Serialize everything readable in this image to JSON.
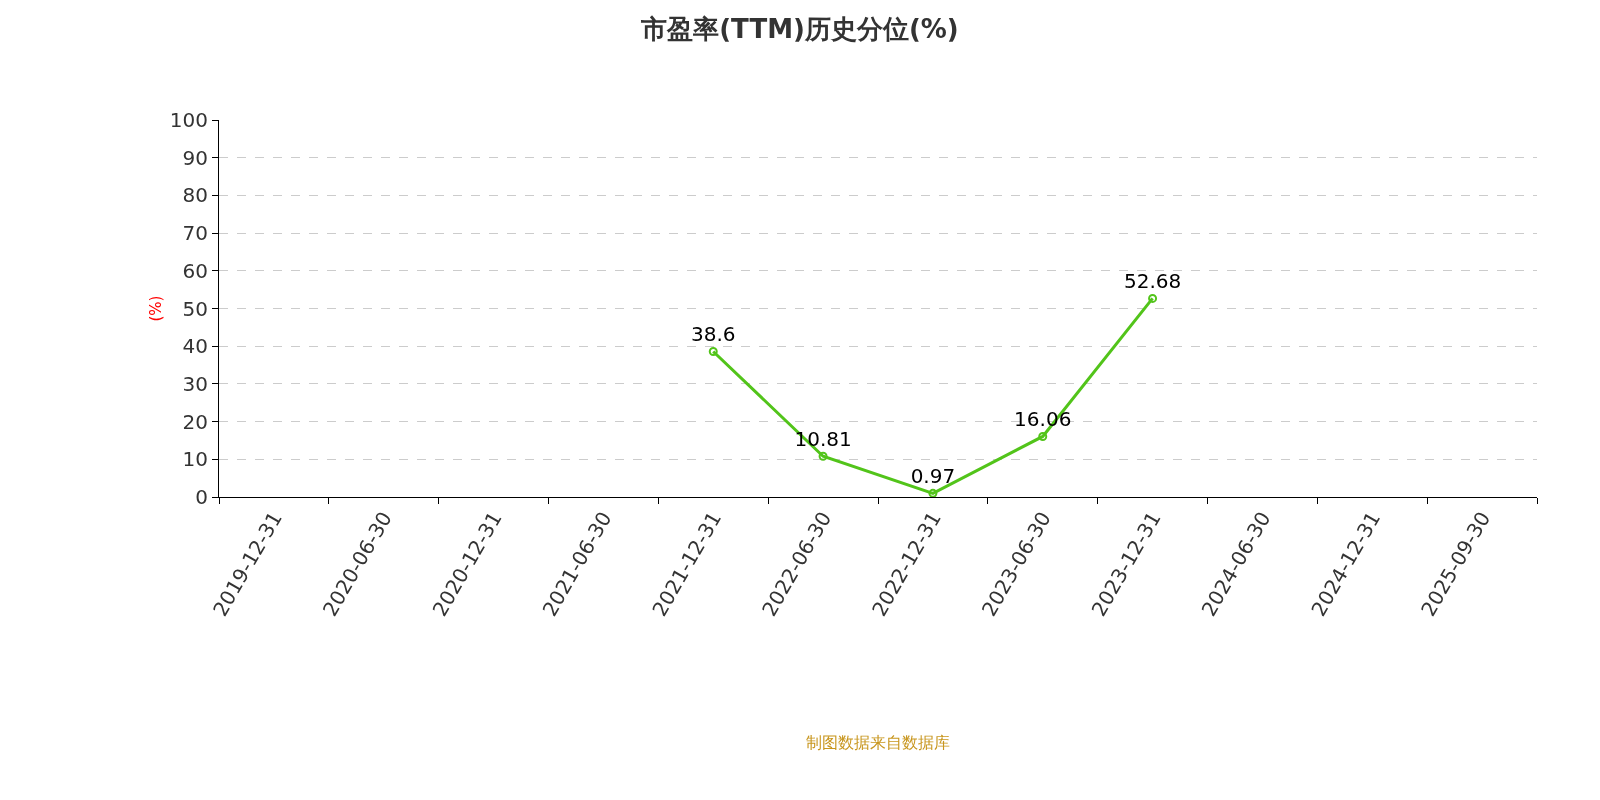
{
  "chart_data": {
    "type": "line",
    "title": "市盈率(TTM)历史分位(%)",
    "ylabel": "(%)",
    "categories": [
      "2019-12-31",
      "2020-06-30",
      "2020-12-31",
      "2021-06-30",
      "2021-12-31",
      "2022-06-30",
      "2022-12-31",
      "2023-06-30",
      "2023-12-31",
      "2024-06-30",
      "2024-12-31",
      "2025-09-30"
    ],
    "series": [
      {
        "color": "#52c41a",
        "values": [
          null,
          null,
          null,
          null,
          38.6,
          10.81,
          0.97,
          16.06,
          52.68,
          null,
          null,
          null
        ]
      }
    ],
    "ylim": [
      0,
      100
    ],
    "yticks": [
      0,
      10,
      20,
      30,
      40,
      50,
      60,
      70,
      80,
      90,
      100
    ],
    "grid": "y",
    "marker": "circle",
    "line_style": "solid",
    "data_labels": true,
    "annotations": [
      "制图数据来自数据库"
    ]
  }
}
